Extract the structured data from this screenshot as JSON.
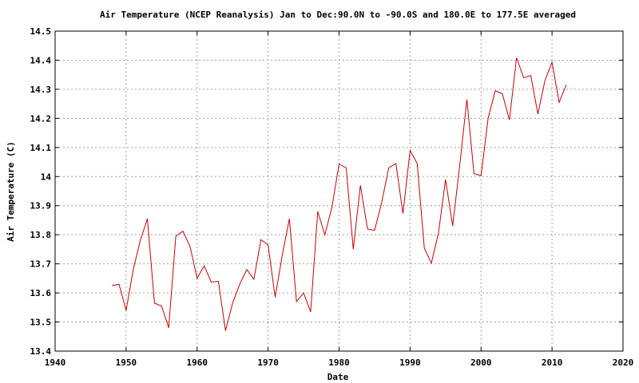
{
  "chart_data": {
    "type": "line",
    "title": "Air Temperature (NCEP Reanalysis) Jan to Dec:90.0N to -90.0S and 180.0E to 177.5E averaged",
    "xlabel": "Date",
    "ylabel": "Air Temperature (C)",
    "xlim": [
      1940,
      2020
    ],
    "ylim": [
      13.4,
      14.5
    ],
    "x_ticks": [
      1940,
      1950,
      1960,
      1970,
      1980,
      1990,
      2000,
      2010,
      2020
    ],
    "y_ticks": [
      13.4,
      13.5,
      13.6,
      13.7,
      13.8,
      13.9,
      14,
      14.1,
      14.2,
      14.3,
      14.4,
      14.5
    ],
    "grid": true,
    "series": [
      {
        "color": "#cc0000",
        "x": [
          1948,
          1949,
          1950,
          1951,
          1952,
          1953,
          1954,
          1955,
          1956,
          1957,
          1958,
          1959,
          1960,
          1961,
          1962,
          1963,
          1964,
          1965,
          1966,
          1967,
          1968,
          1969,
          1970,
          1971,
          1972,
          1973,
          1974,
          1975,
          1976,
          1977,
          1978,
          1979,
          1980,
          1981,
          1982,
          1983,
          1984,
          1985,
          1986,
          1987,
          1988,
          1989,
          1990,
          1991,
          1992,
          1993,
          1994,
          1995,
          1996,
          1997,
          1998,
          1999,
          2000,
          2001,
          2002,
          2003,
          2004,
          2005,
          2006,
          2007,
          2008,
          2009,
          2010,
          2011,
          2012
        ],
        "y": [
          13.625,
          13.63,
          13.54,
          13.68,
          13.78,
          13.855,
          13.565,
          13.555,
          13.48,
          13.795,
          13.812,
          13.76,
          13.65,
          13.693,
          13.637,
          13.64,
          13.47,
          13.565,
          13.63,
          13.68,
          13.647,
          13.783,
          13.765,
          13.585,
          13.73,
          13.855,
          13.57,
          13.6,
          13.535,
          13.88,
          13.8,
          13.895,
          14.043,
          14.03,
          13.75,
          13.97,
          13.82,
          13.815,
          13.91,
          14.03,
          14.045,
          13.873,
          14.09,
          14.045,
          13.755,
          13.702,
          13.805,
          13.99,
          13.83,
          14.04,
          14.265,
          14.01,
          14.003,
          14.2,
          14.295,
          14.285,
          14.195,
          14.408,
          14.34,
          14.347,
          14.215,
          14.33,
          14.393,
          14.255,
          14.315
        ]
      }
    ]
  }
}
